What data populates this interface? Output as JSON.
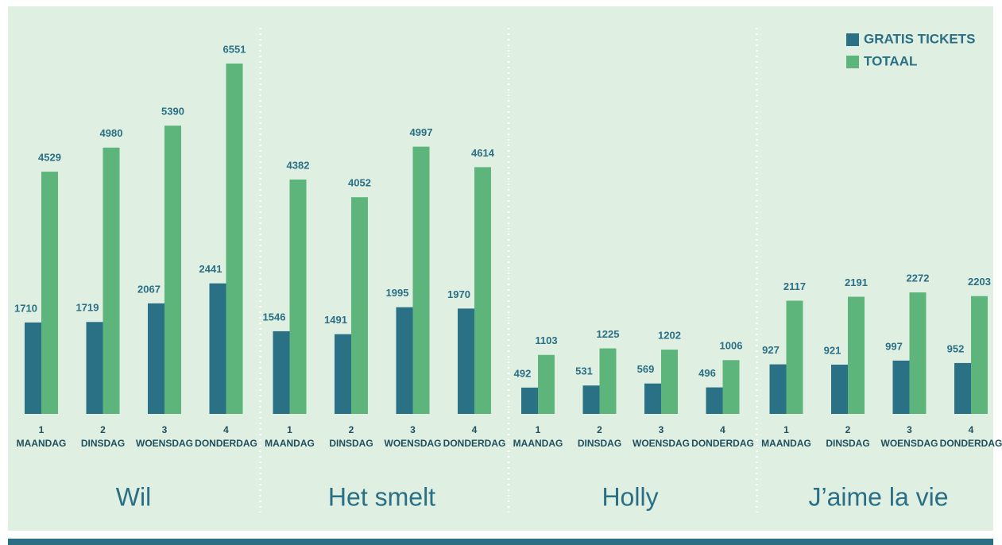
{
  "chart_data": {
    "type": "bar",
    "groups": [
      "Wil",
      "Het smelt",
      "Holly",
      "J’aime la vie"
    ],
    "day_numbers": [
      1,
      2,
      3,
      4
    ],
    "day_names": [
      "MAANDAG",
      "DINSDAG",
      "WOENSDAG",
      "DONDERDAG"
    ],
    "series": [
      {
        "name": "GRATIS TICKETS",
        "color": "#2a7185",
        "values": [
          [
            1710,
            1719,
            2067,
            2441
          ],
          [
            1546,
            1491,
            1995,
            1970
          ],
          [
            492,
            531,
            569,
            496
          ],
          [
            927,
            921,
            997,
            952
          ]
        ]
      },
      {
        "name": "TOTAAL",
        "color": "#5db57b",
        "values": [
          [
            4529,
            4980,
            5390,
            6551
          ],
          [
            4382,
            4052,
            4997,
            4614
          ],
          [
            1103,
            1225,
            1202,
            1006
          ],
          [
            2117,
            2191,
            2272,
            2203
          ]
        ]
      }
    ],
    "legend": "top-right"
  }
}
